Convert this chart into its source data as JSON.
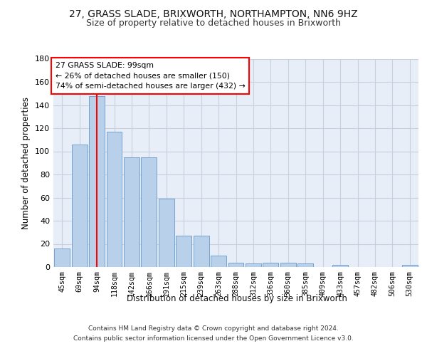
{
  "title1": "27, GRASS SLADE, BRIXWORTH, NORTHAMPTON, NN6 9HZ",
  "title2": "Size of property relative to detached houses in Brixworth",
  "xlabel": "Distribution of detached houses by size in Brixworth",
  "ylabel": "Number of detached properties",
  "bar_labels": [
    "45sqm",
    "69sqm",
    "94sqm",
    "118sqm",
    "142sqm",
    "166sqm",
    "191sqm",
    "215sqm",
    "239sqm",
    "263sqm",
    "288sqm",
    "312sqm",
    "336sqm",
    "360sqm",
    "385sqm",
    "409sqm",
    "433sqm",
    "457sqm",
    "482sqm",
    "506sqm",
    "530sqm"
  ],
  "bar_values": [
    16,
    106,
    148,
    117,
    95,
    95,
    59,
    27,
    27,
    10,
    4,
    3,
    4,
    4,
    3,
    0,
    2,
    0,
    0,
    0,
    2
  ],
  "bar_color": "#b8d0ea",
  "bar_edge_color": "#6699cc",
  "vline_x": 2,
  "vline_color": "red",
  "ylim": [
    0,
    180
  ],
  "yticks": [
    0,
    20,
    40,
    60,
    80,
    100,
    120,
    140,
    160,
    180
  ],
  "annotation_title": "27 GRASS SLADE: 99sqm",
  "annotation_line1": "← 26% of detached houses are smaller (150)",
  "annotation_line2": "74% of semi-detached houses are larger (432) →",
  "annotation_box_color": "white",
  "annotation_box_edge": "red",
  "footer1": "Contains HM Land Registry data © Crown copyright and database right 2024.",
  "footer2": "Contains public sector information licensed under the Open Government Licence v3.0.",
  "background_color": "#e8eef8",
  "grid_color": "#c8d0e0",
  "title1_fontsize": 10,
  "title2_fontsize": 9
}
